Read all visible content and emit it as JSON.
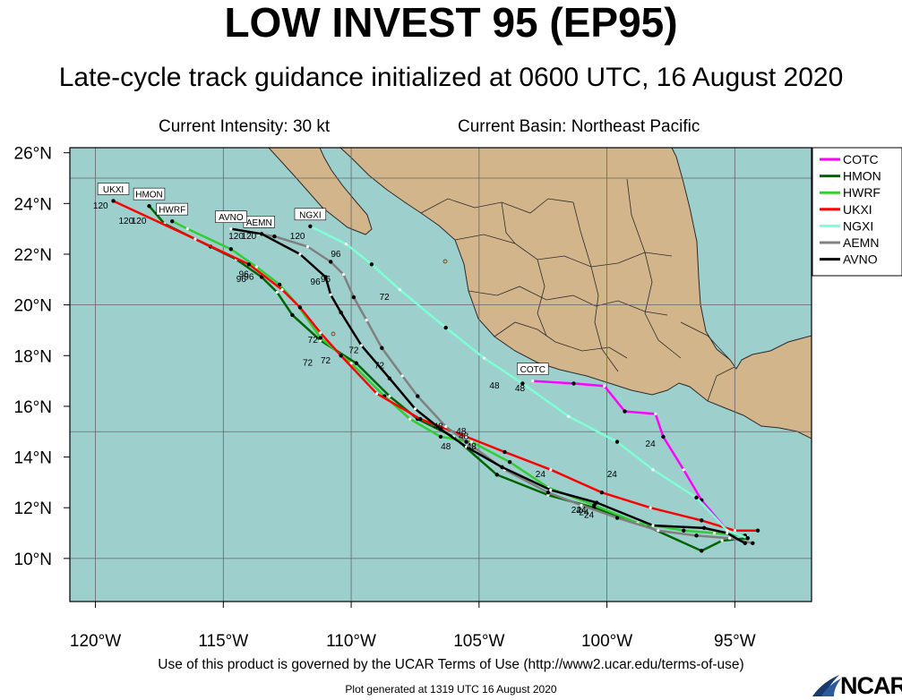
{
  "title": "LOW INVEST 95 (EP95)",
  "subtitle": "Late-cycle track guidance initialized at 0600 UTC, 16 August 2020",
  "current_intensity": "Current Intensity: 30 kt",
  "current_basin": "Current Basin: Northeast Pacific",
  "footer_terms": "Use of this product is governed by the UCAR Terms of Use (http://www2.ucar.edu/terms-of-use)",
  "footer_generated": "Plot generated at 1319 UTC   16 August 2020",
  "logo_text": "NCAR",
  "colors": {
    "ocean": "#9dcfcd",
    "land": "#d3b58b",
    "border": "#2b2b2b"
  },
  "map": {
    "lon_range": [
      -121,
      -92
    ],
    "lat_range": [
      8.3,
      26.2
    ],
    "lon_ticks": [
      {
        "v": -120,
        "label": "120°W"
      },
      {
        "v": -115,
        "label": "115°W"
      },
      {
        "v": -110,
        "label": "110°W"
      },
      {
        "v": -105,
        "label": "105°W"
      },
      {
        "v": -100,
        "label": "100°W"
      },
      {
        "v": -95,
        "label": "95°W"
      }
    ],
    "lat_ticks": [
      {
        "v": 10,
        "label": "10°N"
      },
      {
        "v": 12,
        "label": "12°N"
      },
      {
        "v": 14,
        "label": "14°N"
      },
      {
        "v": 16,
        "label": "16°N"
      },
      {
        "v": 18,
        "label": "18°N"
      },
      {
        "v": 20,
        "label": "20°N"
      },
      {
        "v": 22,
        "label": "22°N"
      },
      {
        "v": 24,
        "label": "24°N"
      },
      {
        "v": 26,
        "label": "26°N"
      }
    ],
    "grid_lons": [
      -120,
      -115,
      -110,
      -105,
      -100,
      -95
    ],
    "grid_lats": [
      10,
      15,
      20,
      25
    ]
  },
  "chart_data": {
    "type": "scatter",
    "x_label": "",
    "y_label": "",
    "legend_position": "top-right",
    "series": [
      {
        "name": "COTC",
        "color": "#ff00ff",
        "label": "COTC",
        "points": [
          [
            -94.5,
            10.8
          ],
          [
            -95.3,
            11.1
          ],
          [
            -96.3,
            12.3
          ],
          [
            -97.0,
            13.5
          ],
          [
            -97.8,
            14.8
          ],
          [
            -98.1,
            15.7
          ],
          [
            -99.3,
            15.8
          ],
          [
            -100.1,
            16.8
          ],
          [
            -101.3,
            16.9
          ],
          [
            -102.9,
            17.0
          ]
        ],
        "hour_labels": [
          {
            "t": "24",
            "lon": -98.3,
            "lat": 14.4
          },
          {
            "t": "48",
            "lon": -103.4,
            "lat": 16.6
          }
        ]
      },
      {
        "name": "HMON",
        "color": "#006400",
        "label": "HMON",
        "points": [
          [
            -94.5,
            10.8
          ],
          [
            -95.5,
            10.7
          ],
          [
            -96.3,
            10.3
          ],
          [
            -98.5,
            11.3
          ],
          [
            -100.5,
            12.0
          ],
          [
            -102.3,
            12.5
          ],
          [
            -104.3,
            13.3
          ],
          [
            -106.0,
            14.8
          ],
          [
            -107.4,
            15.5
          ],
          [
            -108.5,
            16.4
          ],
          [
            -109.8,
            17.7
          ],
          [
            -111.2,
            18.6
          ],
          [
            -112.3,
            19.6
          ],
          [
            -112.9,
            20.5
          ],
          [
            -113.5,
            21.1
          ],
          [
            -114.5,
            21.8
          ],
          [
            -115.5,
            22.3
          ],
          [
            -117.3,
            23.2
          ],
          [
            -117.9,
            23.9
          ]
        ],
        "hour_labels": [
          {
            "t": "24",
            "lon": -101.2,
            "lat": 11.8
          },
          {
            "t": "48",
            "lon": -106.6,
            "lat": 15.1
          },
          {
            "t": "72",
            "lon": -111.5,
            "lat": 18.5
          },
          {
            "t": "96",
            "lon": -114.2,
            "lat": 21.1
          },
          {
            "t": "120",
            "lon": -118.8,
            "lat": 23.2
          }
        ]
      },
      {
        "name": "HWRF",
        "color": "#32cd32",
        "label": "HWRF",
        "points": [
          [
            -94.6,
            10.9
          ],
          [
            -95.8,
            11.0
          ],
          [
            -97.0,
            11.1
          ],
          [
            -98.8,
            11.4
          ],
          [
            -100.5,
            12.1
          ],
          [
            -102.3,
            12.8
          ],
          [
            -103.8,
            13.8
          ],
          [
            -105.3,
            14.6
          ],
          [
            -106.5,
            14.8
          ],
          [
            -107.7,
            15.5
          ],
          [
            -108.7,
            16.4
          ],
          [
            -110.0,
            17.7
          ],
          [
            -111.2,
            18.7
          ],
          [
            -112.1,
            20.0
          ],
          [
            -112.8,
            20.8
          ],
          [
            -113.7,
            21.5
          ],
          [
            -114.7,
            22.2
          ],
          [
            -116.4,
            23.0
          ],
          [
            -117.0,
            23.3
          ]
        ],
        "hour_labels": [
          {
            "t": "24",
            "lon": -100.9,
            "lat": 11.7
          },
          {
            "t": "48",
            "lon": -106.3,
            "lat": 14.3
          },
          {
            "t": "72",
            "lon": -111.7,
            "lat": 17.6
          },
          {
            "t": "96",
            "lon": -114.0,
            "lat": 21.0
          },
          {
            "t": "120",
            "lon": -118.3,
            "lat": 23.2
          }
        ]
      },
      {
        "name": "UKXI",
        "color": "#ff0000",
        "label": "UKXI",
        "points": [
          [
            -94.1,
            11.1
          ],
          [
            -95.0,
            11.1
          ],
          [
            -96.3,
            11.5
          ],
          [
            -98.3,
            12.0
          ],
          [
            -100.2,
            12.6
          ],
          [
            -102.2,
            13.5
          ],
          [
            -104.0,
            14.2
          ],
          [
            -105.5,
            14.8
          ],
          [
            -107.3,
            15.5
          ],
          [
            -109.0,
            16.5
          ],
          [
            -110.4,
            18.0
          ],
          [
            -111.2,
            18.9
          ],
          [
            -112.0,
            19.9
          ],
          [
            -112.7,
            20.6
          ],
          [
            -114.0,
            21.6
          ],
          [
            -116.1,
            22.6
          ],
          [
            -119.3,
            24.1
          ]
        ],
        "hour_labels": [
          {
            "t": "24",
            "lon": -102.6,
            "lat": 13.2
          },
          {
            "t": "48",
            "lon": -105.6,
            "lat": 14.7
          },
          {
            "t": "72",
            "lon": -111.0,
            "lat": 17.7
          },
          {
            "t": "96",
            "lon": -114.3,
            "lat": 20.9
          },
          {
            "t": "120",
            "lon": -119.8,
            "lat": 23.8
          }
        ]
      },
      {
        "name": "NGXI",
        "color": "#7fffd4",
        "label": "NGXI",
        "points": [
          [
            -94.5,
            10.8
          ],
          [
            -95.3,
            11.1
          ],
          [
            -96.5,
            12.4
          ],
          [
            -98.2,
            13.5
          ],
          [
            -99.6,
            14.6
          ],
          [
            -101.5,
            15.6
          ],
          [
            -103.3,
            16.9
          ],
          [
            -104.8,
            17.9
          ],
          [
            -106.3,
            19.1
          ],
          [
            -108.1,
            20.6
          ],
          [
            -109.2,
            21.6
          ],
          [
            -110.2,
            22.4
          ],
          [
            -111.6,
            23.1
          ]
        ],
        "hour_labels": [
          {
            "t": "24",
            "lon": -99.8,
            "lat": 13.2
          },
          {
            "t": "48",
            "lon": -104.4,
            "lat": 16.7
          },
          {
            "t": "72",
            "lon": -108.7,
            "lat": 20.2
          },
          {
            "t": "96",
            "lon": -110.6,
            "lat": 21.9
          },
          {
            "t": "120",
            "lon": -112.1,
            "lat": 22.6
          }
        ]
      },
      {
        "name": "AEMN",
        "color": "#808080",
        "label": "AEMN",
        "points": [
          [
            -94.3,
            10.6
          ],
          [
            -95.2,
            10.8
          ],
          [
            -96.5,
            10.9
          ],
          [
            -98.0,
            11.1
          ],
          [
            -99.6,
            11.6
          ],
          [
            -101.0,
            12.1
          ],
          [
            -102.3,
            12.6
          ],
          [
            -104.0,
            13.5
          ],
          [
            -105.5,
            14.6
          ],
          [
            -106.3,
            15.2
          ],
          [
            -107.4,
            16.4
          ],
          [
            -108.0,
            17.2
          ],
          [
            -108.8,
            18.3
          ],
          [
            -109.4,
            19.4
          ],
          [
            -109.9,
            20.3
          ],
          [
            -110.3,
            21.2
          ],
          [
            -110.8,
            21.7
          ],
          [
            -111.7,
            22.3
          ],
          [
            -113.0,
            22.7
          ],
          [
            -113.6,
            22.8
          ]
        ],
        "hour_labels": [
          {
            "t": "24",
            "lon": -100.7,
            "lat": 11.6
          },
          {
            "t": "48",
            "lon": -105.3,
            "lat": 14.3
          },
          {
            "t": "72",
            "lon": -109.9,
            "lat": 18.1
          },
          {
            "t": "96",
            "lon": -111.0,
            "lat": 20.9
          },
          {
            "t": "120",
            "lon": -114.0,
            "lat": 22.6
          }
        ]
      },
      {
        "name": "AVNO",
        "color": "#000000",
        "label": "AVNO",
        "points": [
          [
            -94.6,
            10.6
          ],
          [
            -95.3,
            11.0
          ],
          [
            -96.2,
            11.2
          ],
          [
            -98.2,
            11.3
          ],
          [
            -100.4,
            12.2
          ],
          [
            -102.2,
            12.7
          ],
          [
            -104.1,
            13.6
          ],
          [
            -105.5,
            14.4
          ],
          [
            -106.5,
            15.1
          ],
          [
            -107.5,
            15.9
          ],
          [
            -108.5,
            17.1
          ],
          [
            -109.6,
            18.4
          ],
          [
            -110.4,
            19.7
          ],
          [
            -110.8,
            20.4
          ],
          [
            -111.0,
            21.1
          ],
          [
            -112.0,
            22.0
          ],
          [
            -113.5,
            22.8
          ],
          [
            -114.7,
            23.0
          ]
        ],
        "hour_labels": [
          {
            "t": "24",
            "lon": -101.0,
            "lat": 11.8
          },
          {
            "t": "48",
            "lon": -105.7,
            "lat": 14.9
          },
          {
            "t": "72",
            "lon": -108.9,
            "lat": 17.5
          },
          {
            "t": "96",
            "lon": -111.4,
            "lat": 20.8
          },
          {
            "t": "120",
            "lon": -114.5,
            "lat": 22.6
          }
        ]
      }
    ]
  }
}
